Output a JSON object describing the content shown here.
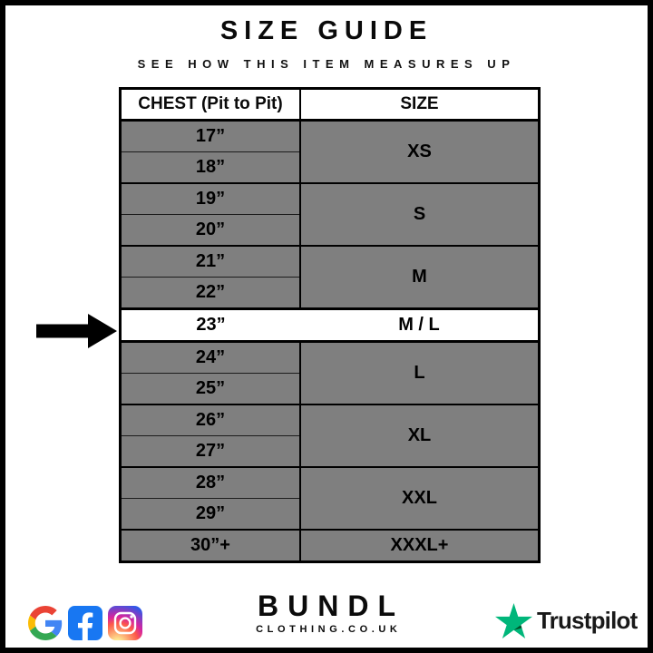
{
  "header": {
    "title": "SIZE GUIDE",
    "subtitle": "SEE HOW THIS ITEM MEASURES UP"
  },
  "table": {
    "columns": [
      "CHEST (Pit to Pit)",
      "SIZE"
    ],
    "groups": [
      {
        "chest": [
          "17”",
          "18”"
        ],
        "size": "XS",
        "highlight": false
      },
      {
        "chest": [
          "19”",
          "20”"
        ],
        "size": "S",
        "highlight": false
      },
      {
        "chest": [
          "21”",
          "22”"
        ],
        "size": "M",
        "highlight": false
      },
      {
        "chest": [
          "23”"
        ],
        "size": "M / L",
        "highlight": true
      },
      {
        "chest": [
          "24”",
          "25”"
        ],
        "size": "L",
        "highlight": false
      },
      {
        "chest": [
          "26”",
          "27”"
        ],
        "size": "XL",
        "highlight": false
      },
      {
        "chest": [
          "28”",
          "29”"
        ],
        "size": "XXL",
        "highlight": false
      },
      {
        "chest": [
          "30”+"
        ],
        "size": "XXXL+",
        "highlight": false
      }
    ]
  },
  "footer": {
    "social_icons": [
      {
        "name": "google-icon"
      },
      {
        "name": "facebook-icon"
      },
      {
        "name": "instagram-icon"
      }
    ],
    "brand": {
      "name": "BUNDL",
      "domain": "CLOTHING.CO.UK"
    },
    "trustpilot": {
      "label": "Trustpilot"
    }
  },
  "colors": {
    "row_gray": "#7f7f7f",
    "highlight_row": "#ffffff",
    "border_black": "#000000",
    "facebook_blue": "#1877F2",
    "trustpilot_green": "#00B67A",
    "trustpilot_dark_green": "#005128"
  },
  "chart_data": {
    "type": "table",
    "title": "SIZE GUIDE",
    "subtitle": "SEE HOW THIS ITEM MEASURES UP",
    "columns": [
      "CHEST (Pit to Pit)",
      "SIZE"
    ],
    "rows": [
      [
        "17”",
        "XS"
      ],
      [
        "18”",
        "XS"
      ],
      [
        "19”",
        "S"
      ],
      [
        "20”",
        "S"
      ],
      [
        "21”",
        "M"
      ],
      [
        "22”",
        "M"
      ],
      [
        "23”",
        "M / L"
      ],
      [
        "24”",
        "L"
      ],
      [
        "25”",
        "L"
      ],
      [
        "26”",
        "XL"
      ],
      [
        "27”",
        "XL"
      ],
      [
        "28”",
        "XXL"
      ],
      [
        "29”",
        "XXL"
      ],
      [
        "30”+",
        "XXXL+"
      ]
    ],
    "highlighted_row": {
      "chest": "23”",
      "size": "M / L"
    },
    "annotations": [
      "arrow pointing at 23” / M / L row"
    ]
  }
}
